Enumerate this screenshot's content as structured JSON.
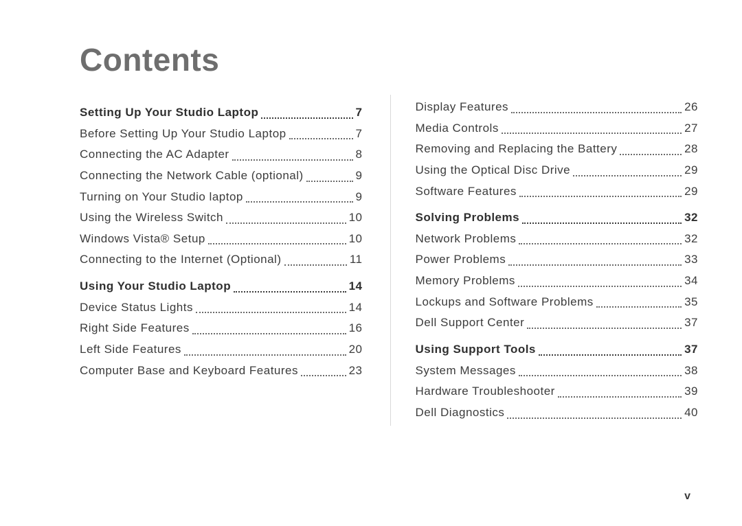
{
  "title": "Contents",
  "page_marker": "v",
  "columns": [
    {
      "entries": [
        {
          "label": "Setting Up Your Studio Laptop",
          "page": "7",
          "bold": true
        },
        {
          "label": "Before Setting Up Your Studio Laptop",
          "page": "7",
          "bold": false
        },
        {
          "label": "Connecting the AC Adapter",
          "page": "8",
          "bold": false
        },
        {
          "label": "Connecting the Network Cable (optional)",
          "page": "9",
          "bold": false
        },
        {
          "label": "Turning on Your Studio laptop",
          "page": "9",
          "bold": false
        },
        {
          "label": "Using the Wireless Switch",
          "page": "10",
          "bold": false
        },
        {
          "label": "Windows Vista® Setup",
          "page": "10",
          "bold": false
        },
        {
          "label": "Connecting to the Internet (Optional)",
          "page": "11",
          "bold": false
        },
        {
          "label": "Using Your Studio Laptop",
          "page": "14",
          "bold": true
        },
        {
          "label": "Device Status Lights",
          "page": "14",
          "bold": false
        },
        {
          "label": "Right Side Features",
          "page": "16",
          "bold": false
        },
        {
          "label": "Left Side Features",
          "page": "20",
          "bold": false
        },
        {
          "label": "Computer Base and Keyboard Features",
          "page": "23",
          "bold": false
        }
      ]
    },
    {
      "entries": [
        {
          "label": "Display Features",
          "page": "26",
          "bold": false
        },
        {
          "label": "Media Controls",
          "page": "27",
          "bold": false
        },
        {
          "label": "Removing and Replacing the Battery",
          "page": "28",
          "bold": false
        },
        {
          "label": "Using the Optical Disc Drive",
          "page": "29",
          "bold": false
        },
        {
          "label": "Software Features",
          "page": "29",
          "bold": false
        },
        {
          "label": "Solving Problems",
          "page": "32",
          "bold": true
        },
        {
          "label": "Network Problems",
          "page": "32",
          "bold": false
        },
        {
          "label": "Power Problems",
          "page": "33",
          "bold": false
        },
        {
          "label": "Memory Problems",
          "page": "34",
          "bold": false
        },
        {
          "label": "Lockups and Software Problems",
          "page": "35",
          "bold": false
        },
        {
          "label": "Dell Support Center",
          "page": "37",
          "bold": false
        },
        {
          "label": "Using Support Tools",
          "page": "37",
          "bold": true
        },
        {
          "label": "System Messages",
          "page": "38",
          "bold": false
        },
        {
          "label": "Hardware Troubleshooter",
          "page": "39",
          "bold": false
        },
        {
          "label": "Dell Diagnostics",
          "page": "40",
          "bold": false
        }
      ]
    }
  ]
}
